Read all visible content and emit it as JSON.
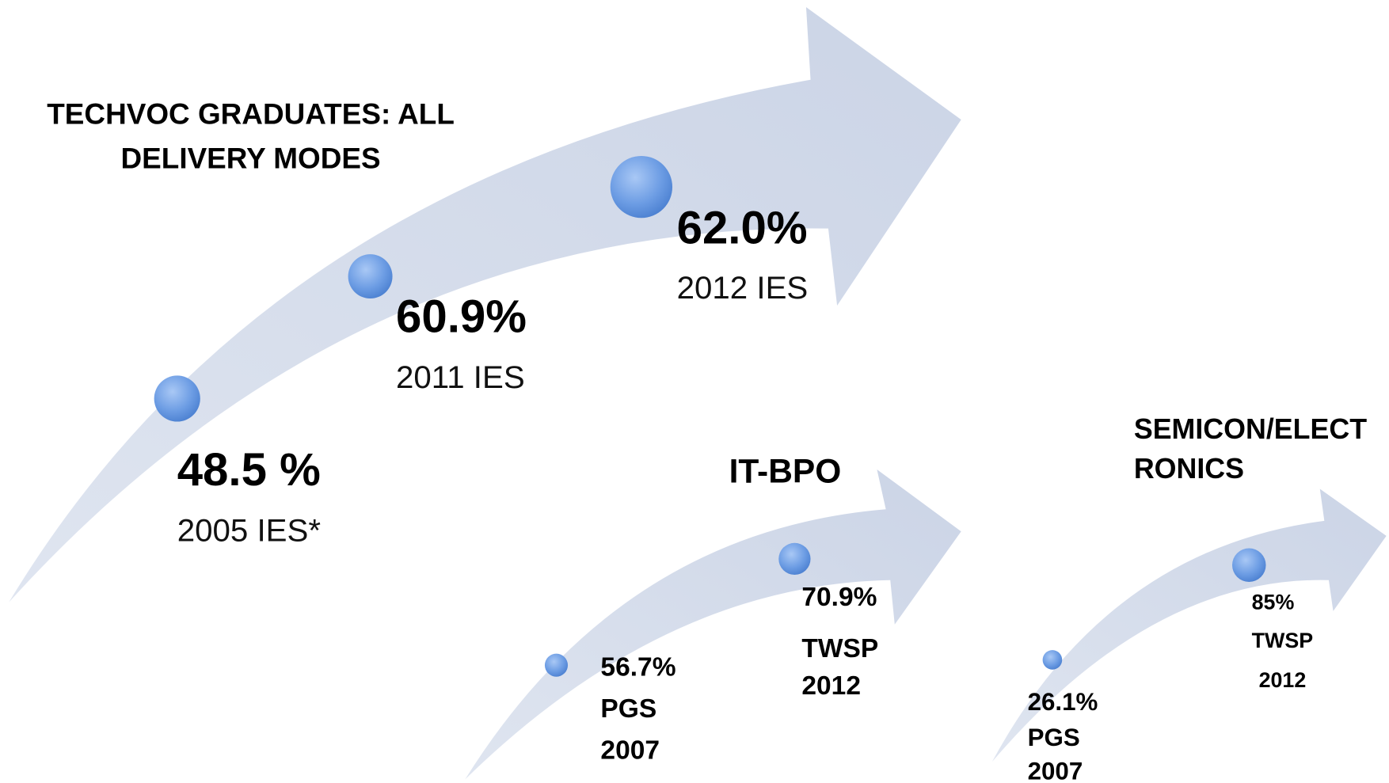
{
  "main": {
    "title_lines": [
      "TECHVOC GRADUATES: ALL",
      "DELIVERY MODES"
    ],
    "points": [
      {
        "value": "48.5 %",
        "source": "2005 IES*"
      },
      {
        "value": "60.9%",
        "source": "2011 IES"
      },
      {
        "value": "62.0%",
        "source": "2012 IES"
      }
    ]
  },
  "panels": [
    {
      "title_lines": [
        "IT-BPO"
      ],
      "points": [
        {
          "value": "56.7%",
          "lines": [
            "PGS",
            "2007"
          ]
        },
        {
          "value": "70.9%",
          "lines": [
            "TWSP",
            "2012"
          ]
        }
      ]
    },
    {
      "title_lines": [
        "SEMICON/ELECT",
        "RONICS"
      ],
      "points": [
        {
          "value": "26.1%",
          "lines": [
            "PGS",
            "2007"
          ]
        },
        {
          "value": "85%",
          "lines": [
            "TWSP",
            "2012"
          ]
        }
      ]
    }
  ]
}
